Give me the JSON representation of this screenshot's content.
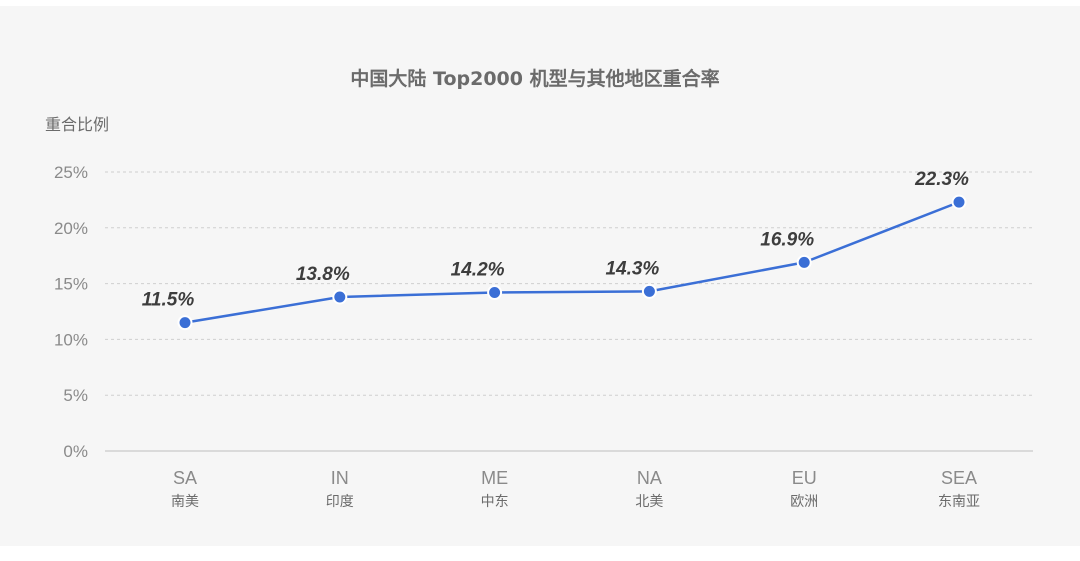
{
  "chart_data": {
    "type": "line",
    "title": "中国大陆 Top2000 机型与其他地区重合率",
    "ylabel": "重合比例",
    "xlabel": "",
    "ylim": [
      0,
      25
    ],
    "yticks": [
      0,
      5,
      10,
      15,
      20,
      25
    ],
    "ytick_labels": [
      "0%",
      "5%",
      "10%",
      "15%",
      "20%",
      "25%"
    ],
    "categories": [
      {
        "code": "SA",
        "name": "南美"
      },
      {
        "code": "IN",
        "name": "印度"
      },
      {
        "code": "ME",
        "name": "中东"
      },
      {
        "code": "NA",
        "name": "北美"
      },
      {
        "code": "EU",
        "name": "欧洲"
      },
      {
        "code": "SEA",
        "name": "东南亚"
      }
    ],
    "series": [
      {
        "name": "重合比例",
        "values": [
          11.5,
          13.8,
          14.2,
          14.3,
          16.9,
          22.3
        ],
        "value_labels": [
          "11.5%",
          "13.8%",
          "14.2%",
          "14.3%",
          "16.9%",
          "22.3%"
        ]
      }
    ],
    "grid": true,
    "colors": {
      "line": "#3b6fd6",
      "point": "#3b6fd6"
    }
  }
}
